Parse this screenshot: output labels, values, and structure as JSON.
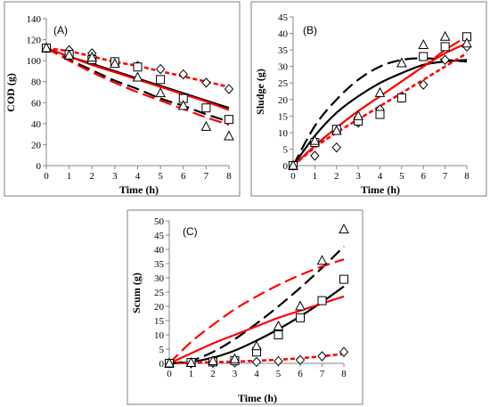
{
  "chart_data": [
    {
      "type": "scatter",
      "panel_label": "(A)",
      "xlabel": "Time (h)",
      "ylabel": "COD (g)",
      "xlim": [
        0,
        8
      ],
      "ylim": [
        0,
        140
      ],
      "xticks": [
        0,
        1,
        2,
        3,
        4,
        5,
        6,
        7,
        8
      ],
      "yticks": [
        0,
        20,
        40,
        60,
        80,
        100,
        120,
        140
      ],
      "grid": false,
      "legend": "none",
      "markers": [
        {
          "shape": "diamond",
          "x": [
            0,
            1,
            2,
            3,
            4,
            5,
            6,
            7,
            8
          ],
          "y": [
            112,
            110,
            107,
            98,
            95,
            92,
            87,
            79,
            73
          ]
        },
        {
          "shape": "square",
          "x": [
            0,
            1,
            2,
            3,
            4,
            5,
            6,
            7,
            8
          ],
          "y": [
            112,
            106,
            101,
            99,
            94,
            82,
            64,
            55,
            44
          ]
        },
        {
          "shape": "triangle",
          "x": [
            0,
            1,
            2,
            3,
            4,
            5,
            6,
            7,
            8
          ],
          "y": [
            112,
            105,
            103,
            97,
            84,
            69,
            57,
            37,
            28
          ]
        }
      ],
      "lines": [
        {
          "color": "#000000",
          "dash": "solid",
          "x": [
            0,
            1,
            2,
            3,
            4,
            5,
            6,
            7,
            8
          ],
          "y": [
            112,
            104,
            97,
            90,
            83,
            76,
            69,
            62,
            55
          ]
        },
        {
          "color": "#ff0000",
          "dash": "solid",
          "x": [
            0,
            1,
            2,
            3,
            4,
            5,
            6,
            7,
            8
          ],
          "y": [
            112,
            104,
            96,
            89,
            82,
            75,
            68,
            61,
            53
          ]
        },
        {
          "color": "#000000",
          "dash": "long",
          "x": [
            0,
            1,
            2,
            3,
            4,
            5,
            6,
            7,
            8
          ],
          "y": [
            112,
            101,
            91,
            81,
            73,
            64,
            57,
            49,
            42
          ]
        },
        {
          "color": "#ff0000",
          "dash": "long",
          "x": [
            0,
            1,
            2,
            3,
            4,
            5,
            6,
            7,
            8
          ],
          "y": [
            112,
            100,
            89,
            79,
            70,
            62,
            54,
            46,
            39
          ]
        },
        {
          "color": "#ff0000",
          "dash": "short",
          "x": [
            0,
            1,
            2,
            3,
            4,
            5,
            6,
            7,
            8
          ],
          "y": [
            112,
            109,
            104,
            99,
            95,
            90,
            85,
            80,
            75
          ]
        }
      ]
    },
    {
      "type": "scatter",
      "panel_label": "(B)",
      "xlabel": "Time (h)",
      "ylabel": "Sludge (g)",
      "xlim": [
        0,
        8
      ],
      "ylim": [
        0,
        45
      ],
      "xticks": [
        0,
        1,
        2,
        3,
        4,
        5,
        6,
        7,
        8
      ],
      "yticks": [
        0,
        5,
        10,
        15,
        20,
        25,
        30,
        35,
        40,
        45
      ],
      "grid": false,
      "legend": "none",
      "markers": [
        {
          "shape": "diamond",
          "x": [
            0,
            1,
            2,
            3,
            4,
            5,
            6,
            7,
            8
          ],
          "y": [
            0,
            3,
            5.5,
            13,
            17,
            20.5,
            24.5,
            32,
            36
          ]
        },
        {
          "shape": "square",
          "x": [
            0,
            1,
            2,
            3,
            4,
            5,
            6,
            7,
            8
          ],
          "y": [
            0,
            7,
            11,
            13.5,
            15.5,
            20.5,
            33,
            36,
            39
          ]
        },
        {
          "shape": "triangle",
          "x": [
            0,
            1,
            2,
            3,
            4,
            5,
            6,
            7,
            8
          ],
          "y": [
            0,
            7.5,
            10.5,
            15,
            22,
            31,
            36.5,
            39,
            37
          ]
        }
      ],
      "lines": [
        {
          "color": "#000000",
          "dash": "solid",
          "x": [
            0,
            1,
            2,
            3,
            4,
            5,
            6,
            7,
            8
          ],
          "y": [
            0,
            9,
            16,
            21,
            25,
            28,
            30.5,
            31.5,
            32
          ]
        },
        {
          "color": "#000000",
          "dash": "long",
          "x": [
            0,
            1,
            2,
            3,
            4,
            5,
            6,
            7,
            8
          ],
          "y": [
            0,
            12,
            20,
            26,
            30,
            32,
            32.5,
            32,
            31.5
          ]
        },
        {
          "color": "#ff0000",
          "dash": "solid",
          "x": [
            0,
            1,
            2,
            3,
            4,
            5,
            6,
            7,
            8
          ],
          "y": [
            0,
            6,
            11.5,
            16.5,
            21,
            25.5,
            30,
            34,
            37
          ]
        },
        {
          "color": "#ff0000",
          "dash": "long",
          "x": [
            0,
            1,
            2,
            3,
            4,
            5,
            6,
            7,
            8
          ],
          "y": [
            0,
            6,
            11.5,
            16.5,
            21,
            25.5,
            30,
            35,
            39
          ]
        },
        {
          "color": "#ff0000",
          "dash": "short",
          "x": [
            0,
            1,
            2,
            3,
            4,
            5,
            6,
            7,
            8
          ],
          "y": [
            0,
            5.5,
            10,
            14,
            18,
            22,
            26,
            30,
            34
          ]
        }
      ]
    },
    {
      "type": "scatter",
      "panel_label": "(C)",
      "xlabel": "Time (h)",
      "ylabel": "Scum (g)",
      "xlim": [
        0,
        8
      ],
      "ylim": [
        0,
        50
      ],
      "xticks": [
        0,
        1,
        2,
        3,
        4,
        5,
        6,
        7,
        8
      ],
      "yticks": [
        0,
        5,
        10,
        15,
        20,
        25,
        30,
        35,
        40,
        45,
        50
      ],
      "grid": false,
      "legend": "none",
      "markers": [
        {
          "shape": "diamond",
          "x": [
            0,
            1,
            2,
            3,
            4,
            5,
            6,
            7,
            8
          ],
          "y": [
            0,
            0,
            0.2,
            0.3,
            0.5,
            0.8,
            1.2,
            2.5,
            4
          ]
        },
        {
          "shape": "square",
          "x": [
            0,
            1,
            2,
            3,
            4,
            5,
            6,
            7,
            8
          ],
          "y": [
            0,
            0.3,
            0.5,
            1,
            4,
            10,
            16,
            22,
            29.5
          ]
        },
        {
          "shape": "triangle",
          "x": [
            0,
            1,
            2,
            3,
            4,
            5,
            6,
            7,
            8
          ],
          "y": [
            0,
            0.2,
            0.8,
            1.5,
            6,
            13,
            20,
            36,
            47
          ]
        }
      ],
      "lines": [
        {
          "color": "#000000",
          "dash": "solid",
          "x": [
            0,
            1,
            2,
            3,
            4,
            5,
            6,
            7,
            8
          ],
          "y": [
            0,
            0.5,
            2,
            4.5,
            8,
            12,
            16.5,
            21.5,
            27
          ]
        },
        {
          "color": "#000000",
          "dash": "long",
          "x": [
            0,
            1,
            2,
            3,
            4,
            5,
            6,
            7,
            8
          ],
          "y": [
            0,
            1,
            4,
            8.5,
            14,
            20,
            26.5,
            33.5,
            41
          ]
        },
        {
          "color": "#ff0000",
          "dash": "solid",
          "x": [
            0,
            1,
            2,
            3,
            4,
            5,
            6,
            7,
            8
          ],
          "y": [
            0,
            3.5,
            7,
            10,
            13,
            16,
            18.5,
            21,
            23.5
          ]
        },
        {
          "color": "#ff0000",
          "dash": "long",
          "x": [
            0,
            1,
            2,
            3,
            4,
            5,
            6,
            7,
            8
          ],
          "y": [
            0,
            7.5,
            13.5,
            19,
            23.5,
            27.5,
            31,
            34,
            36.5
          ]
        },
        {
          "color": "#ff0000",
          "dash": "short",
          "x": [
            0,
            1,
            2,
            3,
            4,
            5,
            6,
            7,
            8
          ],
          "y": [
            0,
            0.2,
            0.4,
            0.6,
            0.9,
            1.3,
            1.8,
            2.5,
            3.3
          ]
        }
      ]
    }
  ]
}
